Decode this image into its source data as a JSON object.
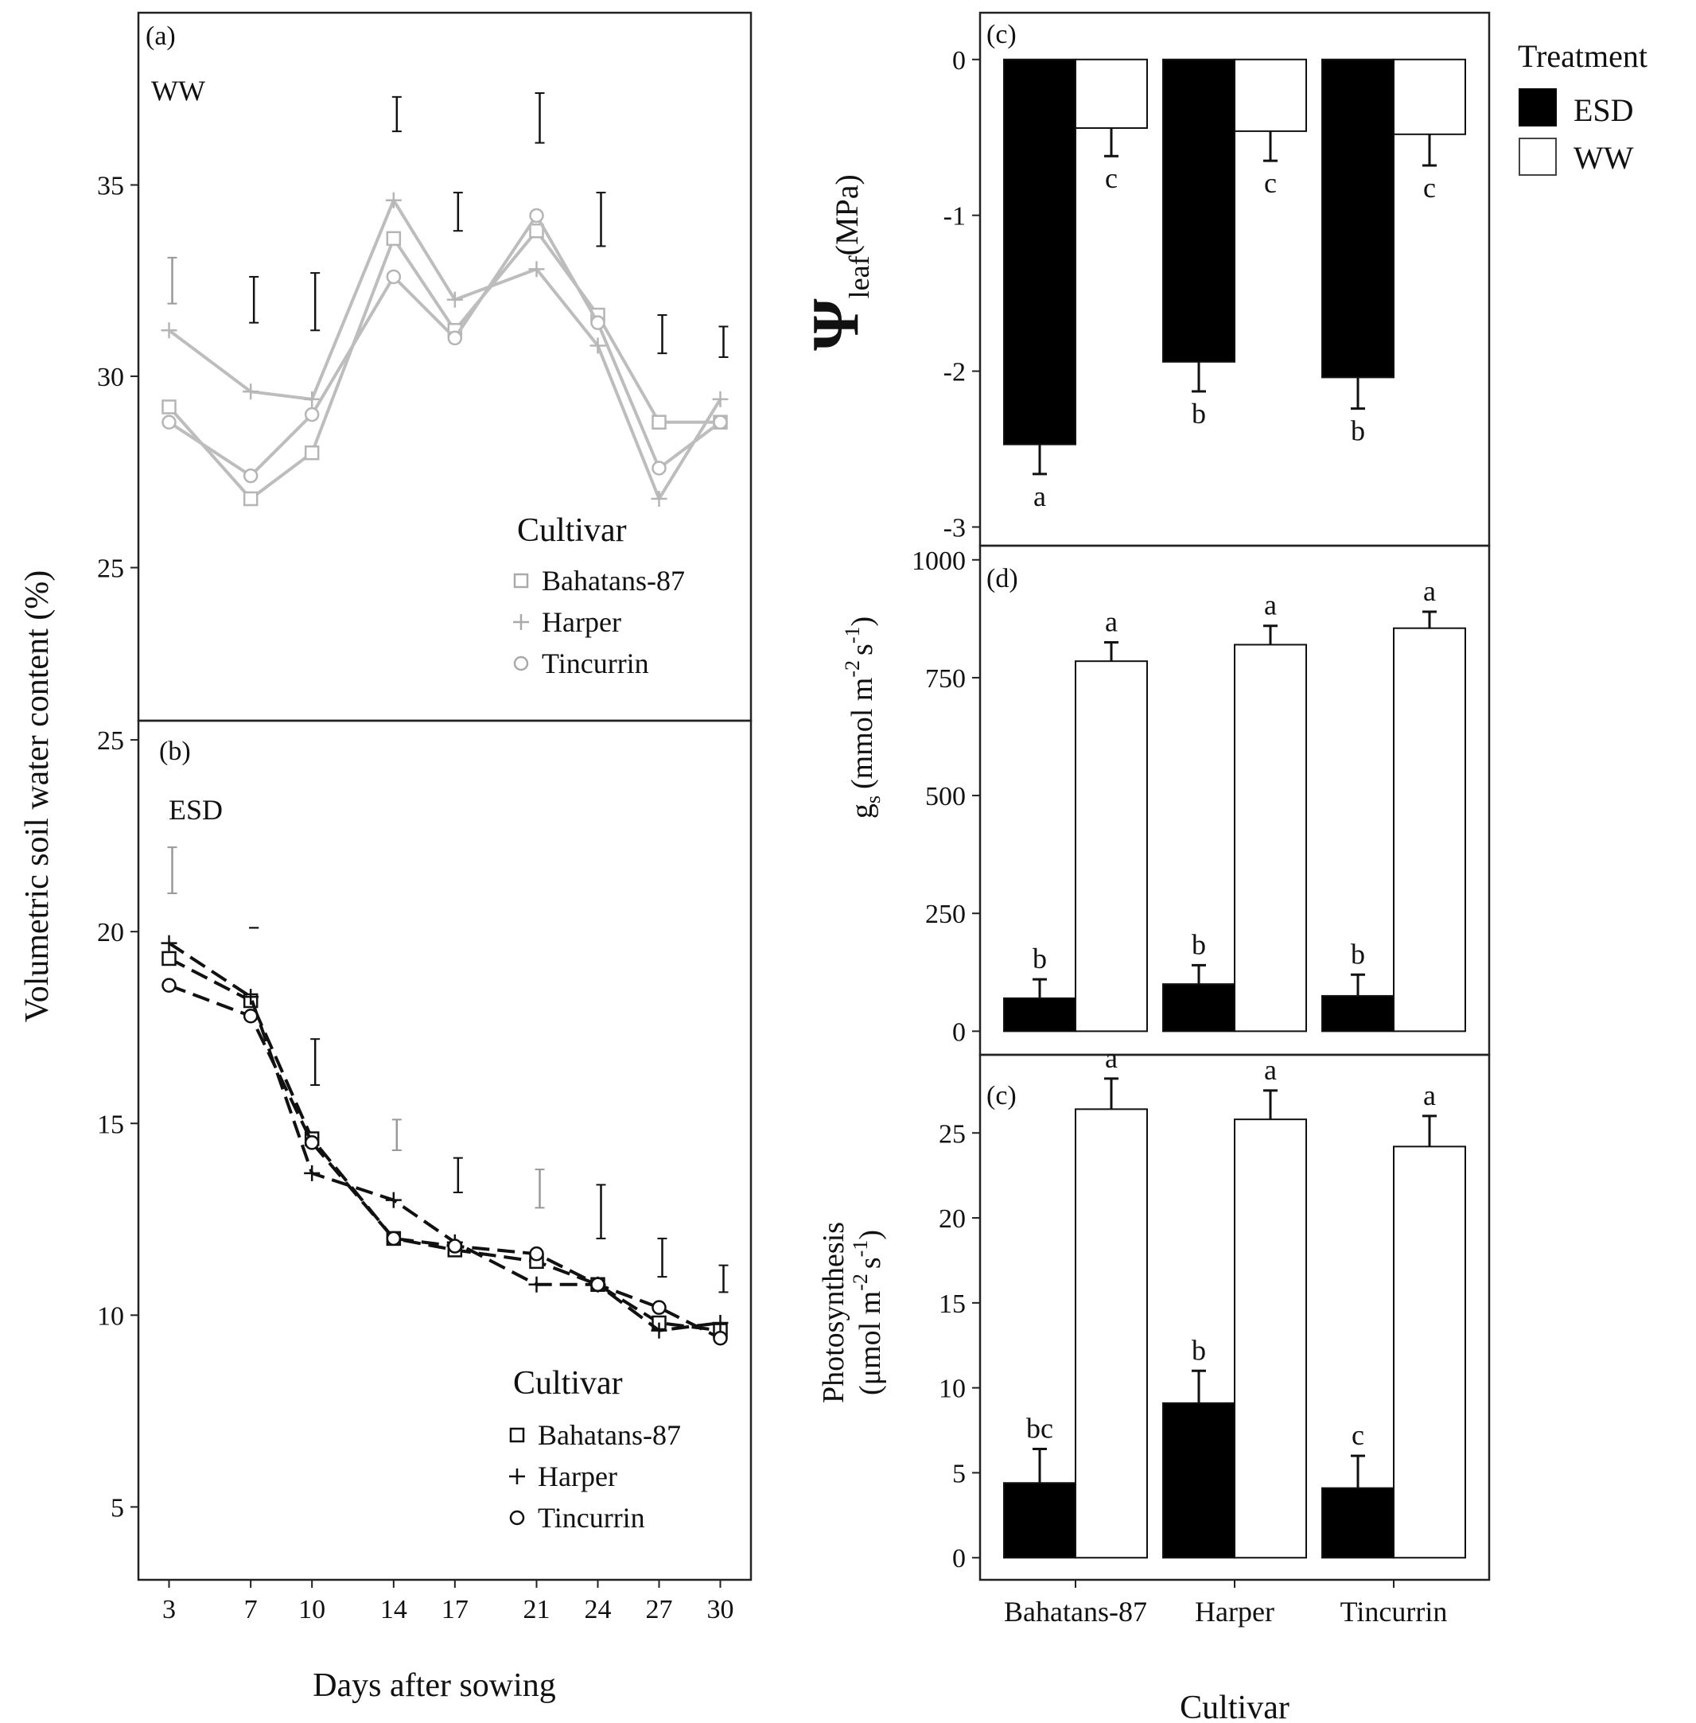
{
  "shared": {
    "ylabel_left": "Volumetric soil water content (%)",
    "xlabel_left": "Days after sowing",
    "xlabel_right": "Cultivar"
  },
  "legend_cultivar": {
    "title": "Cultivar",
    "items": [
      "Bahatans-87",
      "Harper",
      "Tincurrin"
    ],
    "markers": [
      "square",
      "plus",
      "circle"
    ]
  },
  "legend_treatment": {
    "title": "Treatment",
    "items": [
      "ESD",
      "WW"
    ],
    "colors": [
      "#000000",
      "#ffffff"
    ]
  },
  "colors": {
    "ww_line": "#bdbdbd",
    "esd_line": "#111111",
    "esd_bar": "#000000",
    "ww_bar": "#ffffff"
  },
  "chart_data": [
    {
      "id": "a",
      "panel_label": "(a)",
      "treatment_label": "WW",
      "type": "line",
      "x": [
        3,
        7,
        10,
        14,
        17,
        21,
        24,
        27,
        30
      ],
      "xticks": [
        "3",
        "7",
        "10",
        "14",
        "17",
        "21",
        "24",
        "27",
        "30"
      ],
      "yticks": [
        "25",
        "30",
        "35"
      ],
      "ylim": [
        21,
        39.5
      ],
      "series": [
        {
          "name": "Bahatans-87",
          "marker": "square",
          "values": [
            29.2,
            26.8,
            28.0,
            33.6,
            31.2,
            33.8,
            31.6,
            28.8,
            28.8
          ]
        },
        {
          "name": "Harper",
          "marker": "plus",
          "values": [
            31.2,
            29.6,
            29.4,
            34.6,
            32.0,
            32.8,
            30.8,
            26.8,
            29.4
          ]
        },
        {
          "name": "Tincurrin",
          "marker": "circle",
          "values": [
            28.8,
            27.4,
            29.0,
            32.6,
            31.0,
            34.2,
            31.4,
            27.6,
            28.8
          ]
        }
      ],
      "error_bars": [
        {
          "x": 3,
          "low": 31.9,
          "high": 33.1
        },
        {
          "x": 7,
          "low": 31.4,
          "high": 32.6
        },
        {
          "x": 10,
          "low": 31.2,
          "high": 32.7
        },
        {
          "x": 14,
          "low": 36.4,
          "high": 37.3
        },
        {
          "x": 17,
          "low": 33.8,
          "high": 34.8
        },
        {
          "x": 21,
          "low": 36.1,
          "high": 37.4
        },
        {
          "x": 24,
          "low": 33.4,
          "high": 34.8
        },
        {
          "x": 27,
          "low": 30.6,
          "high": 31.6
        },
        {
          "x": 30,
          "low": 30.5,
          "high": 31.3
        }
      ]
    },
    {
      "id": "b",
      "panel_label": "(b)",
      "treatment_label": "ESD",
      "type": "line",
      "x": [
        3,
        7,
        10,
        14,
        17,
        21,
        24,
        27,
        30
      ],
      "xticks": [
        "3",
        "7",
        "10",
        "14",
        "17",
        "21",
        "24",
        "27",
        "30"
      ],
      "yticks": [
        "5",
        "10",
        "15",
        "20",
        "25"
      ],
      "ylim": [
        3.1,
        25.5
      ],
      "series": [
        {
          "name": "Bahatans-87",
          "marker": "square",
          "values": [
            19.3,
            18.2,
            14.6,
            12.0,
            11.7,
            11.4,
            10.8,
            9.8,
            9.6
          ]
        },
        {
          "name": "Harper",
          "marker": "plus",
          "values": [
            19.7,
            18.3,
            13.7,
            13.0,
            11.9,
            10.8,
            10.8,
            9.6,
            9.8
          ]
        },
        {
          "name": "Tincurrin",
          "marker": "circle",
          "values": [
            18.6,
            17.8,
            14.5,
            12.0,
            11.8,
            11.6,
            10.8,
            10.2,
            9.4
          ]
        }
      ],
      "error_bars": [
        {
          "x": 3,
          "low": 21.0,
          "high": 22.2
        },
        {
          "x": 7,
          "low": 20.1,
          "high": 20.1
        },
        {
          "x": 10,
          "low": 16.0,
          "high": 17.2
        },
        {
          "x": 14,
          "low": 14.3,
          "high": 15.1
        },
        {
          "x": 17,
          "low": 13.2,
          "high": 14.1
        },
        {
          "x": 21,
          "low": 12.8,
          "high": 13.8
        },
        {
          "x": 24,
          "low": 12.0,
          "high": 13.4
        },
        {
          "x": 27,
          "low": 11.0,
          "high": 12.0
        },
        {
          "x": 30,
          "low": 10.6,
          "high": 11.3
        }
      ]
    },
    {
      "id": "c",
      "panel_label": "(c)",
      "type": "bar",
      "ylabel": "(MPa)",
      "ylabel_symbol": "Ψ",
      "ylabel_subscript": "leaf",
      "categories": [
        "Bahatans-87",
        "Harper",
        "Tincurrin"
      ],
      "yticks": [
        "0",
        "-1",
        "-2",
        "-3"
      ],
      "ylim": [
        -3.12,
        0.3
      ],
      "series": [
        {
          "name": "ESD",
          "values": [
            -2.47,
            -1.94,
            -2.04
          ],
          "errors": [
            0.19,
            0.19,
            0.2
          ],
          "letters": [
            "a",
            "b",
            "b"
          ]
        },
        {
          "name": "WW",
          "values": [
            -0.44,
            -0.46,
            -0.48
          ],
          "errors": [
            0.18,
            0.19,
            0.2
          ],
          "letters": [
            "c",
            "c",
            "c"
          ]
        }
      ]
    },
    {
      "id": "d",
      "panel_label": "(d)",
      "type": "bar",
      "ylabel": "(mmol m",
      "ylabel_symbol": "g",
      "ylabel_subscript": "s",
      "ylabel_units": [
        "-2",
        "s",
        "-1",
        ")"
      ],
      "categories": [
        "Bahatans-87",
        "Harper",
        "Tincurrin"
      ],
      "yticks": [
        "0",
        "250",
        "500",
        "750",
        "1000"
      ],
      "ylim": [
        -50,
        1030
      ],
      "series": [
        {
          "name": "ESD",
          "values": [
            70,
            100,
            75
          ],
          "errors": [
            40,
            40,
            45
          ],
          "letters": [
            "b",
            "b",
            "b"
          ]
        },
        {
          "name": "WW",
          "values": [
            785,
            820,
            855
          ],
          "errors": [
            40,
            40,
            35
          ],
          "letters": [
            "a",
            "a",
            "a"
          ]
        }
      ]
    },
    {
      "id": "e",
      "panel_label": "(c)",
      "type": "bar",
      "ylabel": "Photosynthesis",
      "ylabel_line2": "(μmol m",
      "ylabel_units": [
        "-2",
        "s",
        "-1",
        ")"
      ],
      "categories": [
        "Bahatans-87",
        "Harper",
        "Tincurrin"
      ],
      "yticks": [
        "0",
        "5",
        "10",
        "15",
        "20",
        "25"
      ],
      "ylim": [
        -1.3,
        29.6
      ],
      "series": [
        {
          "name": "ESD",
          "values": [
            4.4,
            9.1,
            4.1
          ],
          "errors": [
            2.0,
            1.9,
            1.9
          ],
          "letters": [
            "bc",
            "b",
            "c"
          ]
        },
        {
          "name": "WW",
          "values": [
            26.4,
            25.8,
            24.2
          ],
          "errors": [
            1.8,
            1.7,
            1.8
          ],
          "letters": [
            "a",
            "a",
            "a"
          ]
        }
      ]
    }
  ]
}
